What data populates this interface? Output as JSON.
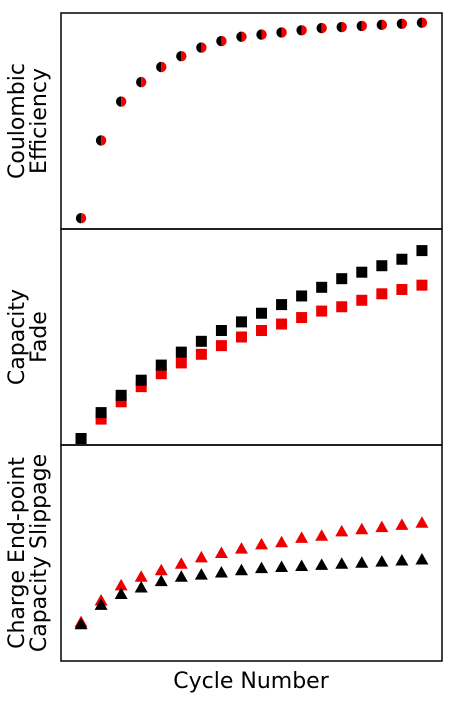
{
  "figure": {
    "xlabel": "Cycle Number"
  },
  "colors": {
    "black": "#000000",
    "red": "#ee0000"
  },
  "chart_data": [
    {
      "type": "scatter",
      "ylabel_lines": [
        "Coulombic",
        "Efficiency"
      ],
      "marker": "split-circle",
      "x": [
        1,
        2,
        3,
        4,
        5,
        6,
        7,
        8,
        9,
        10,
        11,
        12,
        13,
        14,
        15,
        16,
        17,
        18
      ],
      "xlim": [
        0,
        19
      ],
      "ylim": [
        0,
        1.0
      ],
      "series": [
        {
          "color": "black",
          "values": [
            0.05,
            0.41,
            0.59,
            0.68,
            0.75,
            0.8,
            0.84,
            0.87,
            0.89,
            0.9,
            0.91,
            0.92,
            0.93,
            0.935,
            0.94,
            0.945,
            0.95,
            0.955
          ]
        }
      ]
    },
    {
      "type": "scatter",
      "ylabel_lines": [
        "Capacity",
        "Fade"
      ],
      "marker": "square",
      "x": [
        1,
        2,
        3,
        4,
        5,
        6,
        7,
        8,
        9,
        10,
        11,
        12,
        13,
        14,
        15,
        16,
        17,
        18
      ],
      "xlim": [
        0,
        19
      ],
      "ylim": [
        0,
        1.0
      ],
      "series": [
        {
          "color": "black",
          "values": [
            0.03,
            0.15,
            0.23,
            0.3,
            0.37,
            0.43,
            0.48,
            0.53,
            0.57,
            0.61,
            0.65,
            0.69,
            0.73,
            0.77,
            0.8,
            0.83,
            0.86,
            0.9
          ]
        },
        {
          "color": "red",
          "values": [
            0.03,
            0.12,
            0.2,
            0.27,
            0.33,
            0.38,
            0.42,
            0.46,
            0.5,
            0.53,
            0.56,
            0.59,
            0.62,
            0.64,
            0.67,
            0.7,
            0.72,
            0.74
          ]
        }
      ]
    },
    {
      "type": "scatter",
      "ylabel_lines": [
        "Charge End-point",
        "Capacity Slippage"
      ],
      "marker": "triangle",
      "x": [
        1,
        2,
        3,
        4,
        5,
        6,
        7,
        8,
        9,
        10,
        11,
        12,
        13,
        14,
        15,
        16,
        17,
        18
      ],
      "xlim": [
        0,
        19
      ],
      "ylim": [
        0,
        1.0
      ],
      "series": [
        {
          "color": "black",
          "values": [
            0.17,
            0.26,
            0.31,
            0.34,
            0.37,
            0.39,
            0.4,
            0.41,
            0.42,
            0.43,
            0.435,
            0.44,
            0.445,
            0.45,
            0.455,
            0.46,
            0.465,
            0.47
          ]
        },
        {
          "color": "red",
          "values": [
            0.18,
            0.28,
            0.35,
            0.39,
            0.42,
            0.45,
            0.48,
            0.5,
            0.52,
            0.54,
            0.55,
            0.57,
            0.58,
            0.6,
            0.61,
            0.62,
            0.63,
            0.64
          ]
        }
      ]
    }
  ]
}
